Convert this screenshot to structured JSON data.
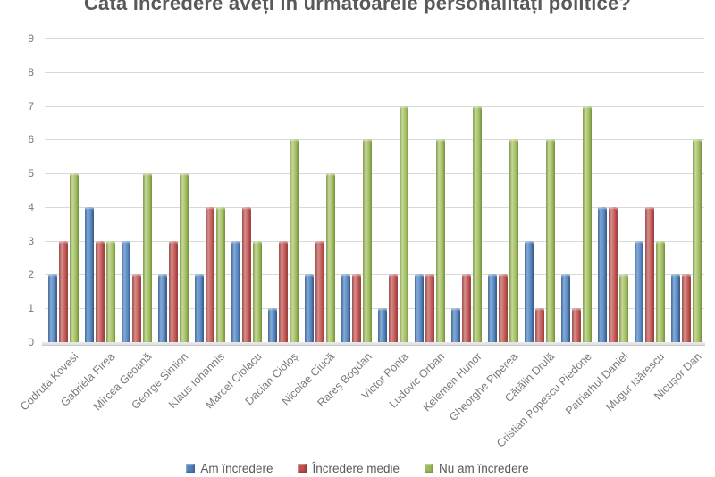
{
  "chart_data": {
    "type": "bar",
    "title": "Câtă încredere aveți în următoarele personalități politice?",
    "categories": [
      "Codruța Kovesi",
      "Gabriela Firea",
      "Mircea Geoană",
      "George Simion",
      "Klaus Iohannis",
      "Marcel Ciolacu",
      "Dacian Cioloș",
      "Nicolae Ciucă",
      "Rareș Bogdan",
      "Victor Ponta",
      "Ludovic Orban",
      "Kelemen Hunor",
      "Gheorghe Piperea",
      "Cătălin Drulă",
      "Cristian Popescu Piedone",
      "Patriarhul Daniel",
      "Mugur Isărescu",
      "Nicușor Dan"
    ],
    "series": [
      {
        "name": "Am încredere",
        "color": "#4f81bd",
        "values": [
          2,
          4,
          3,
          2,
          2,
          3,
          1,
          2,
          2,
          1,
          2,
          1,
          2,
          3,
          2,
          4,
          3,
          2
        ]
      },
      {
        "name": "Încredere medie",
        "color": "#c0504d",
        "values": [
          3,
          3,
          2,
          3,
          4,
          4,
          3,
          3,
          2,
          2,
          2,
          2,
          2,
          1,
          1,
          4,
          4,
          2
        ]
      },
      {
        "name": "Nu am încredere",
        "color": "#9bbb59",
        "values": [
          5,
          3,
          5,
          5,
          4,
          3,
          6,
          5,
          6,
          7,
          6,
          7,
          6,
          6,
          7,
          2,
          3,
          6
        ]
      }
    ],
    "xlabel": "",
    "ylabel": "",
    "ylim": [
      0,
      9
    ],
    "yticks": [
      0,
      1,
      2,
      3,
      4,
      5,
      6,
      7,
      8,
      9
    ],
    "grid": true,
    "legend_position": "bottom",
    "title_color": "#595959",
    "axis_label_color": "#7a7a7a",
    "gridline_color": "#d9d9d9"
  }
}
